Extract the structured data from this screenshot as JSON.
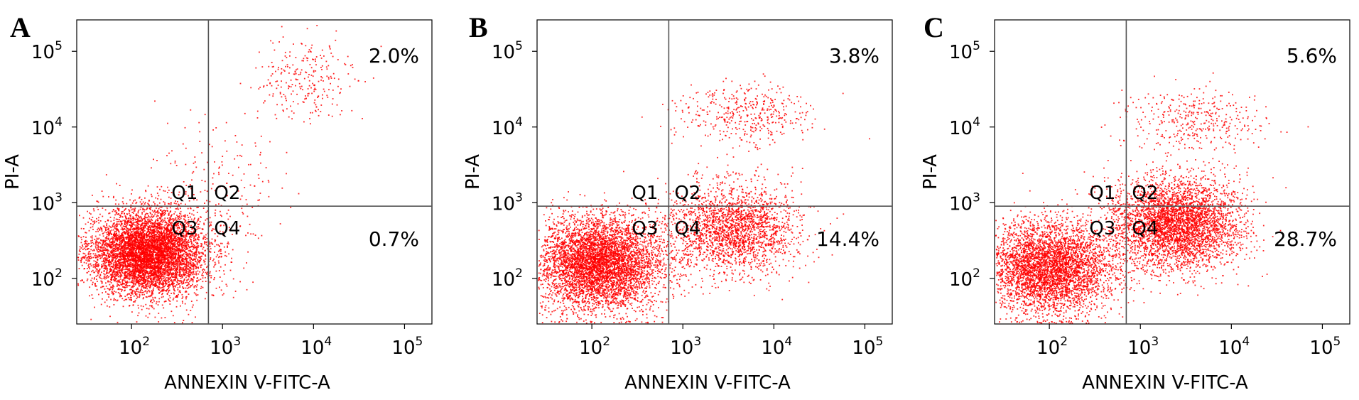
{
  "chart_data": [
    {
      "type": "scatter",
      "panel": "A",
      "xlabel": "ANNEXIN V-FITC-A",
      "ylabel": "PI-A",
      "x_ticks": [
        100,
        1000,
        10000,
        100000
      ],
      "y_ticks": [
        100,
        1000,
        10000,
        100000
      ],
      "x_scale": "log",
      "y_scale": "log",
      "xlim": [
        25,
        200000
      ],
      "ylim": [
        25,
        260000
      ],
      "gate": {
        "x": 700,
        "y": 900
      },
      "quadrants": [
        "Q1",
        "Q2",
        "Q3",
        "Q4"
      ],
      "percentages": {
        "Q2": "2.0%",
        "Q4": "0.7%"
      },
      "color": "#ff0000",
      "populations": [
        {
          "x": 150,
          "y": 220,
          "sx": 0.32,
          "sy": 0.28,
          "n": 6500
        },
        {
          "x": 900,
          "y": 1500,
          "sx": 0.35,
          "sy": 0.45,
          "n": 180
        },
        {
          "x": 8000,
          "y": 45000,
          "sx": 0.28,
          "sy": 0.28,
          "n": 260
        }
      ]
    },
    {
      "type": "scatter",
      "panel": "B",
      "xlabel": "ANNEXIN V-FITC-A",
      "ylabel": "PI-A",
      "x_ticks": [
        100,
        1000,
        10000,
        100000
      ],
      "y_ticks": [
        100,
        1000,
        10000,
        100000
      ],
      "x_scale": "log",
      "y_scale": "log",
      "xlim": [
        25,
        200000
      ],
      "ylim": [
        25,
        260000
      ],
      "gate": {
        "x": 700,
        "y": 900
      },
      "quadrants": [
        "Q1",
        "Q2",
        "Q3",
        "Q4"
      ],
      "percentages": {
        "Q2": "3.8%",
        "Q4": "14.4%"
      },
      "color": "#ff0000",
      "populations": [
        {
          "x": 120,
          "y": 160,
          "sx": 0.35,
          "sy": 0.3,
          "n": 5200
        },
        {
          "x": 3500,
          "y": 450,
          "sx": 0.35,
          "sy": 0.3,
          "n": 2200
        },
        {
          "x": 5000,
          "y": 15000,
          "sx": 0.38,
          "sy": 0.2,
          "n": 420
        }
      ]
    },
    {
      "type": "scatter",
      "panel": "C",
      "xlabel": "ANNEXIN V-FITC-A",
      "ylabel": "PI-A",
      "x_ticks": [
        100,
        1000,
        10000,
        100000
      ],
      "y_ticks": [
        100,
        1000,
        10000,
        100000
      ],
      "x_scale": "log",
      "y_scale": "log",
      "xlim": [
        25,
        200000
      ],
      "ylim": [
        25,
        260000
      ],
      "gate": {
        "x": 700,
        "y": 900
      },
      "quadrants": [
        "Q1",
        "Q2",
        "Q3",
        "Q4"
      ],
      "percentages": {
        "Q2": "5.6%",
        "Q4": "28.7%"
      },
      "color": "#ff0000",
      "populations": [
        {
          "x": 100,
          "y": 140,
          "sx": 0.35,
          "sy": 0.3,
          "n": 4200
        },
        {
          "x": 2500,
          "y": 550,
          "sx": 0.35,
          "sy": 0.3,
          "n": 3800
        },
        {
          "x": 4000,
          "y": 12000,
          "sx": 0.38,
          "sy": 0.22,
          "n": 380
        }
      ]
    }
  ]
}
